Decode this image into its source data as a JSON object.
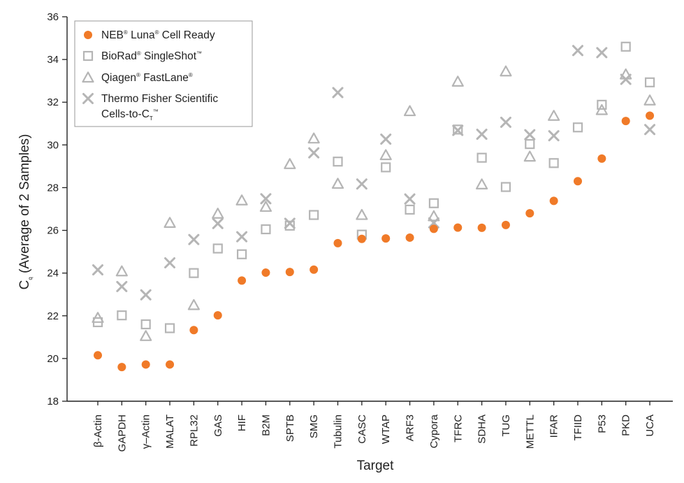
{
  "chart_data": {
    "type": "scatter",
    "xlabel": "Target",
    "ylabel": "Cq (Average of 2 Samples)",
    "ylabel_main": "C",
    "ylabel_sub": "q",
    "ylabel_rest": " (Average of 2 Samples)",
    "ylim": [
      18,
      36
    ],
    "yticks": [
      18,
      20,
      22,
      24,
      26,
      28,
      30,
      32,
      34,
      36
    ],
    "grid": false,
    "legend_position": "top-left",
    "categories": [
      "β-Actin",
      "GAPDH",
      "γ–Actin",
      "MALAT",
      "RPL32",
      "GAS",
      "HIF",
      "B2M",
      "SPTB",
      "SMG",
      "Tubulin",
      "CASC",
      "WTAP",
      "ARF3",
      "Cypora",
      "TFRC",
      "SDHA",
      "TUG",
      "METTL",
      "IFAR",
      "TFIID",
      "P53",
      "PKD",
      "UCA"
    ],
    "series": [
      {
        "name": "NEB® Luna® Cell Ready",
        "legend_parts": [
          [
            "NEB",
            ""
          ],
          [
            "®",
            "sup"
          ],
          [
            " Luna",
            ""
          ],
          [
            "®",
            "sup"
          ],
          [
            " Cell Ready",
            ""
          ]
        ],
        "marker": "circle",
        "color": "#f07a28",
        "values": [
          20.15,
          19.6,
          19.72,
          19.72,
          21.33,
          22.02,
          23.65,
          24.02,
          24.05,
          24.16,
          25.4,
          25.6,
          25.62,
          25.66,
          26.07,
          26.13,
          26.12,
          26.25,
          26.8,
          27.38,
          28.3,
          29.36,
          31.12,
          31.37
        ]
      },
      {
        "name": "BioRad® SingleShot™",
        "legend_parts": [
          [
            "BioRad",
            ""
          ],
          [
            "®",
            "sup"
          ],
          [
            " SingleShot",
            ""
          ],
          [
            "™",
            "sup"
          ]
        ],
        "marker": "square",
        "color": "#b5b5b5",
        "values": [
          21.7,
          22.02,
          21.6,
          21.42,
          24.0,
          25.15,
          24.88,
          26.05,
          26.22,
          26.72,
          29.22,
          25.8,
          28.95,
          26.97,
          27.27,
          30.72,
          29.4,
          28.03,
          30.04,
          29.15,
          30.82,
          31.88,
          34.6,
          32.93
        ]
      },
      {
        "name": "Qiagen® FastLane®",
        "legend_parts": [
          [
            "Qiagen",
            ""
          ],
          [
            "®",
            "sup"
          ],
          [
            " FastLane",
            ""
          ],
          [
            "®",
            "sup"
          ]
        ],
        "marker": "triangle",
        "color": "#b5b5b5",
        "values": [
          21.9,
          24.08,
          21.05,
          26.35,
          22.5,
          26.78,
          27.4,
          27.1,
          29.1,
          30.3,
          28.18,
          26.72,
          29.52,
          31.58,
          26.66,
          32.96,
          28.15,
          33.44,
          29.45,
          31.36,
          null,
          31.63,
          33.3,
          32.08
        ]
      },
      {
        "name": "Thermo Fisher Scientific Cells-to-CT™",
        "legend_parts": [
          [
            "Thermo Fisher Scientific",
            ""
          ]
        ],
        "legend_parts_line2": [
          [
            "Cells-to-C",
            ""
          ],
          [
            "T",
            "sub"
          ],
          [
            "™",
            "sup"
          ]
        ],
        "marker": "x",
        "color": "#b5b5b5",
        "values": [
          24.15,
          23.37,
          22.98,
          24.48,
          25.57,
          26.32,
          25.7,
          27.48,
          26.33,
          29.63,
          32.45,
          28.17,
          30.27,
          27.47,
          26.35,
          30.68,
          30.5,
          31.06,
          30.48,
          30.43,
          34.42,
          34.32,
          33.07,
          30.72
        ]
      }
    ]
  }
}
